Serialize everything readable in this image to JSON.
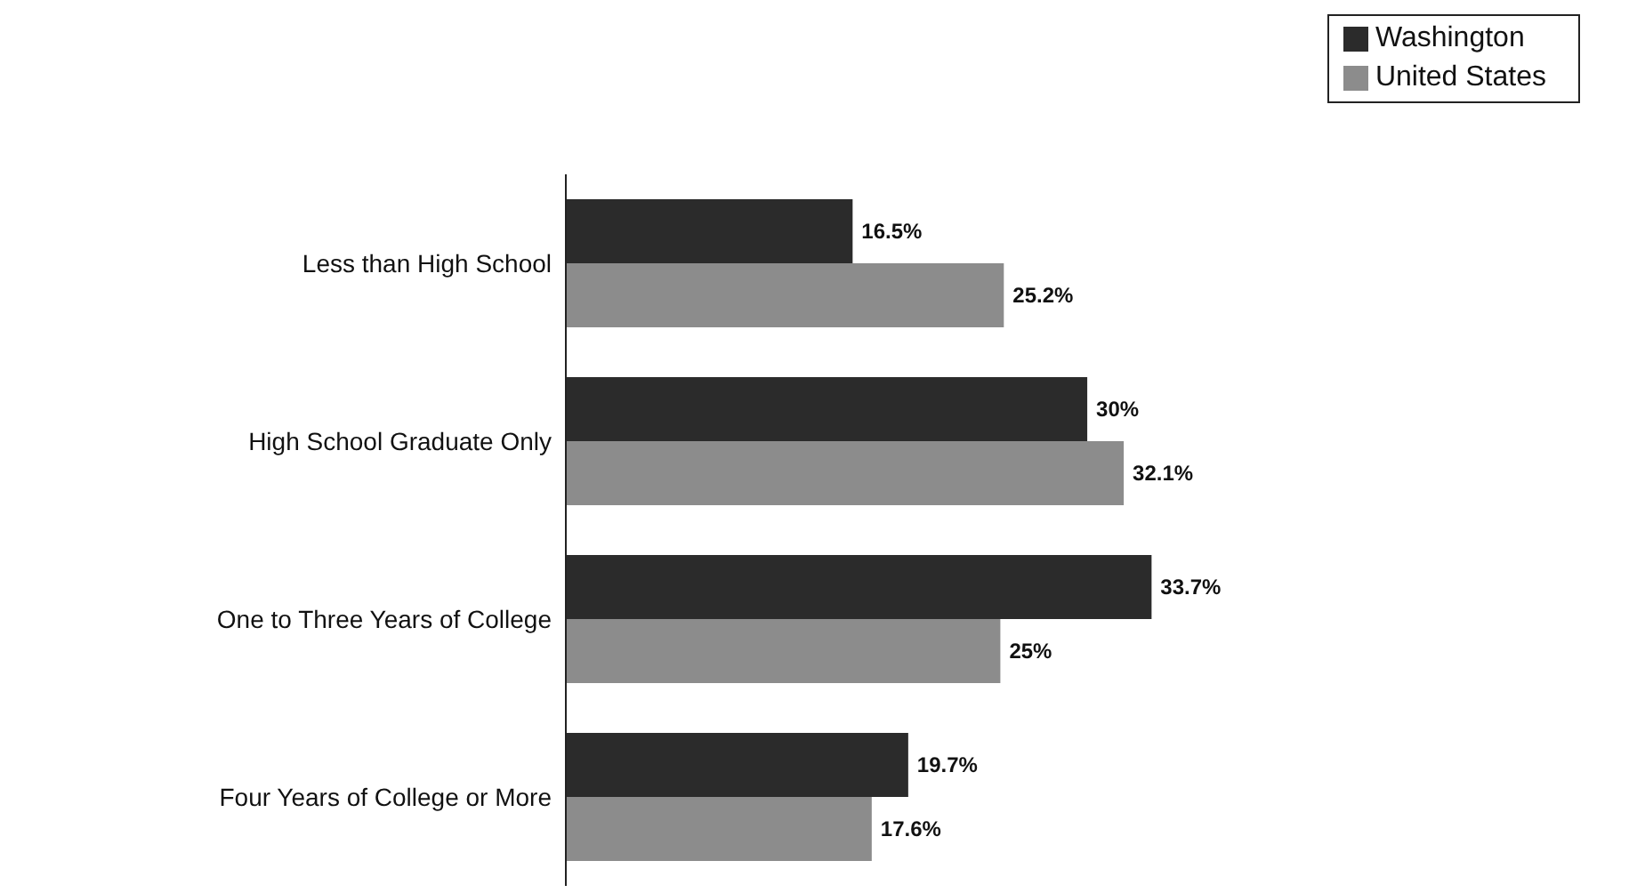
{
  "chart_data": {
    "type": "bar",
    "orientation": "horizontal",
    "categories": [
      "Less than High School",
      "High School Graduate Only",
      "One to Three Years of College",
      "Four Years of College or More"
    ],
    "series": [
      {
        "name": "Washington",
        "color": "#2b2b2b",
        "values": [
          16.5,
          30,
          33.7,
          19.7
        ],
        "value_labels": [
          "16.5%",
          "30%",
          "33.7%",
          "19.7%"
        ]
      },
      {
        "name": "United States",
        "color": "#8c8c8c",
        "values": [
          25.2,
          32.1,
          25,
          17.6
        ],
        "value_labels": [
          "25.2%",
          "32.1%",
          "25%",
          "17.6%"
        ]
      }
    ],
    "tick_labels": "y",
    "legend": "top right"
  }
}
